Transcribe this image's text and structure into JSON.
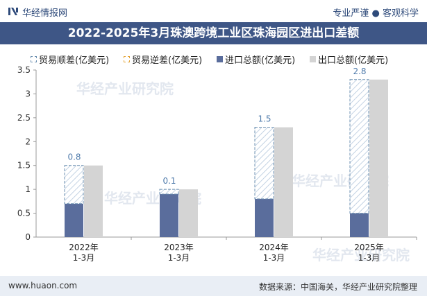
{
  "header": {
    "brand": "华经情报网",
    "slogan": "专业严谨 ● 客观科学"
  },
  "watermark": "华经产业研究院",
  "footer": {
    "site": "www.huaon.com",
    "source": "数据来源：中国海关，华经产业研究院整理"
  },
  "colors": {
    "title_bg": "#3e5686",
    "import": "#5a6d9c",
    "export": "#d4d4d4",
    "surplus_border": "#6b8fb0",
    "deficit_border": "#e5a63b",
    "footer_bg": "#e9eef5"
  },
  "chart_data": {
    "type": "bar",
    "title": "2022-2025年3月珠澳跨境工业区珠海园区进出口差额",
    "categories": [
      "2022年\n1-3月",
      "2023年\n1-3月",
      "2024年\n1-3月",
      "2025年\n1-3月"
    ],
    "series": [
      {
        "name": "贸易顺差(亿美元)",
        "values": [
          0.8,
          0.1,
          1.5,
          2.8
        ]
      },
      {
        "name": "贸易逆差(亿美元)",
        "values": [
          0,
          0,
          0,
          0
        ]
      },
      {
        "name": "进口总额(亿美元)",
        "values": [
          0.7,
          0.9,
          0.8,
          0.5
        ]
      },
      {
        "name": "出口总额(亿美元)",
        "values": [
          1.5,
          1.0,
          2.3,
          3.3
        ]
      }
    ],
    "data_labels": [
      "0.8",
      "0.1",
      "1.5",
      "2.8"
    ],
    "y_ticks": [
      "0",
      "0.5",
      "1",
      "1.5",
      "2",
      "2.5",
      "3",
      "3.5"
    ],
    "ylim": [
      0,
      3.5
    ],
    "legend_position": "top",
    "grid": false
  }
}
